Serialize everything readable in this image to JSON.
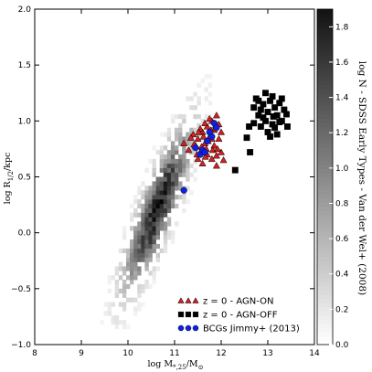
{
  "chart_data": {
    "type": "scatter",
    "xlabel": "log M_{*,25}/M_{⊙}",
    "ylabel": "log R_{1/2}/kpc",
    "xlim": [
      8,
      14
    ],
    "ylim": [
      -1.0,
      2.0
    ],
    "x_ticks": [
      "8",
      "9",
      "10",
      "11",
      "12",
      "13",
      "14"
    ],
    "y_ticks": [
      "−1.0",
      "−0.5",
      "0.0",
      "0.5",
      "1.0",
      "1.5",
      "2.0"
    ],
    "grid": false,
    "legend_position": "lower-right",
    "background_density": {
      "colorbar_label": "log N - SDSS Early Types - Van der Wel+ (2008)",
      "colorbar_range": [
        0.0,
        1.9
      ],
      "colorbar_ticks": [
        "0.0",
        "0.2",
        "0.4",
        "0.6",
        "0.8",
        "1.0",
        "1.2",
        "1.4",
        "1.6",
        "1.8"
      ],
      "colormap": "gray_r"
    },
    "series": [
      {
        "name": "z = 0 - AGN-ON",
        "marker": "triangle",
        "color": "#d62020",
        "points": [
          [
            11.3,
            0.74
          ],
          [
            11.45,
            0.78
          ],
          [
            11.5,
            0.84
          ],
          [
            11.55,
            0.72
          ],
          [
            11.6,
            0.9
          ],
          [
            11.65,
            0.8
          ],
          [
            11.7,
            0.95
          ],
          [
            11.75,
            0.86
          ],
          [
            11.8,
            1.0
          ],
          [
            11.85,
            0.92
          ],
          [
            11.9,
            1.05
          ],
          [
            11.95,
            0.97
          ],
          [
            11.5,
            0.66
          ],
          [
            11.6,
            0.62
          ],
          [
            11.7,
            0.7
          ],
          [
            11.8,
            0.66
          ],
          [
            11.9,
            0.6
          ],
          [
            12.0,
            0.72
          ],
          [
            11.4,
            0.88
          ],
          [
            11.55,
            0.93
          ],
          [
            11.65,
            0.98
          ],
          [
            11.75,
            1.02
          ],
          [
            11.85,
            0.78
          ],
          [
            11.95,
            0.84
          ],
          [
            12.0,
            0.9
          ],
          [
            11.2,
            0.8
          ],
          [
            11.35,
            0.85
          ],
          [
            11.58,
            0.77
          ],
          [
            11.72,
            0.82
          ],
          [
            11.82,
            0.74
          ],
          [
            11.9,
            0.69
          ],
          [
            12.05,
            0.65
          ],
          [
            11.62,
            0.86
          ],
          [
            11.78,
            0.92
          ],
          [
            11.48,
            0.7
          ],
          [
            11.68,
            0.75
          ],
          [
            11.88,
            0.96
          ],
          [
            11.52,
            0.9
          ],
          [
            11.42,
            0.79
          ],
          [
            11.92,
            0.75
          ],
          [
            11.8,
            0.84
          ],
          [
            11.66,
            0.68
          ]
        ]
      },
      {
        "name": "z = 0 - AGN-OFF",
        "marker": "square",
        "color": "#000000",
        "points": [
          [
            12.3,
            0.56
          ],
          [
            12.6,
            0.95
          ],
          [
            12.7,
            1.12
          ],
          [
            12.75,
            1.2
          ],
          [
            12.8,
            1.05
          ],
          [
            12.85,
            1.1
          ],
          [
            12.9,
            1.15
          ],
          [
            12.95,
            1.0
          ],
          [
            13.0,
            1.08
          ],
          [
            13.05,
            1.18
          ],
          [
            13.1,
            0.97
          ],
          [
            13.15,
            1.12
          ],
          [
            13.2,
            1.05
          ],
          [
            13.25,
            1.16
          ],
          [
            13.3,
            1.0
          ],
          [
            13.35,
            1.1
          ],
          [
            13.4,
            1.06
          ],
          [
            13.0,
            0.9
          ],
          [
            13.1,
            1.22
          ],
          [
            12.85,
            0.95
          ],
          [
            13.2,
            0.88
          ],
          [
            12.7,
            0.98
          ],
          [
            12.95,
            1.25
          ],
          [
            13.3,
            1.2
          ],
          [
            13.05,
            0.86
          ],
          [
            13.15,
            0.94
          ],
          [
            12.8,
            1.18
          ],
          [
            13.25,
            0.99
          ],
          [
            12.55,
            0.85
          ],
          [
            12.62,
            0.72
          ],
          [
            13.42,
            0.95
          ],
          [
            12.9,
            1.03
          ],
          [
            13.12,
            1.04
          ]
        ]
      },
      {
        "name": "BCGs Jimmy+ (2013)",
        "marker": "circle",
        "color": "#1020e0",
        "points": [
          [
            11.2,
            0.38
          ],
          [
            11.45,
            0.76
          ],
          [
            11.55,
            0.7
          ],
          [
            11.6,
            0.74
          ],
          [
            11.7,
            0.82
          ],
          [
            11.75,
            0.9
          ],
          [
            11.8,
            0.86
          ],
          [
            11.85,
            0.98
          ],
          [
            11.65,
            0.72
          ],
          [
            11.9,
            0.94
          ]
        ]
      }
    ]
  }
}
